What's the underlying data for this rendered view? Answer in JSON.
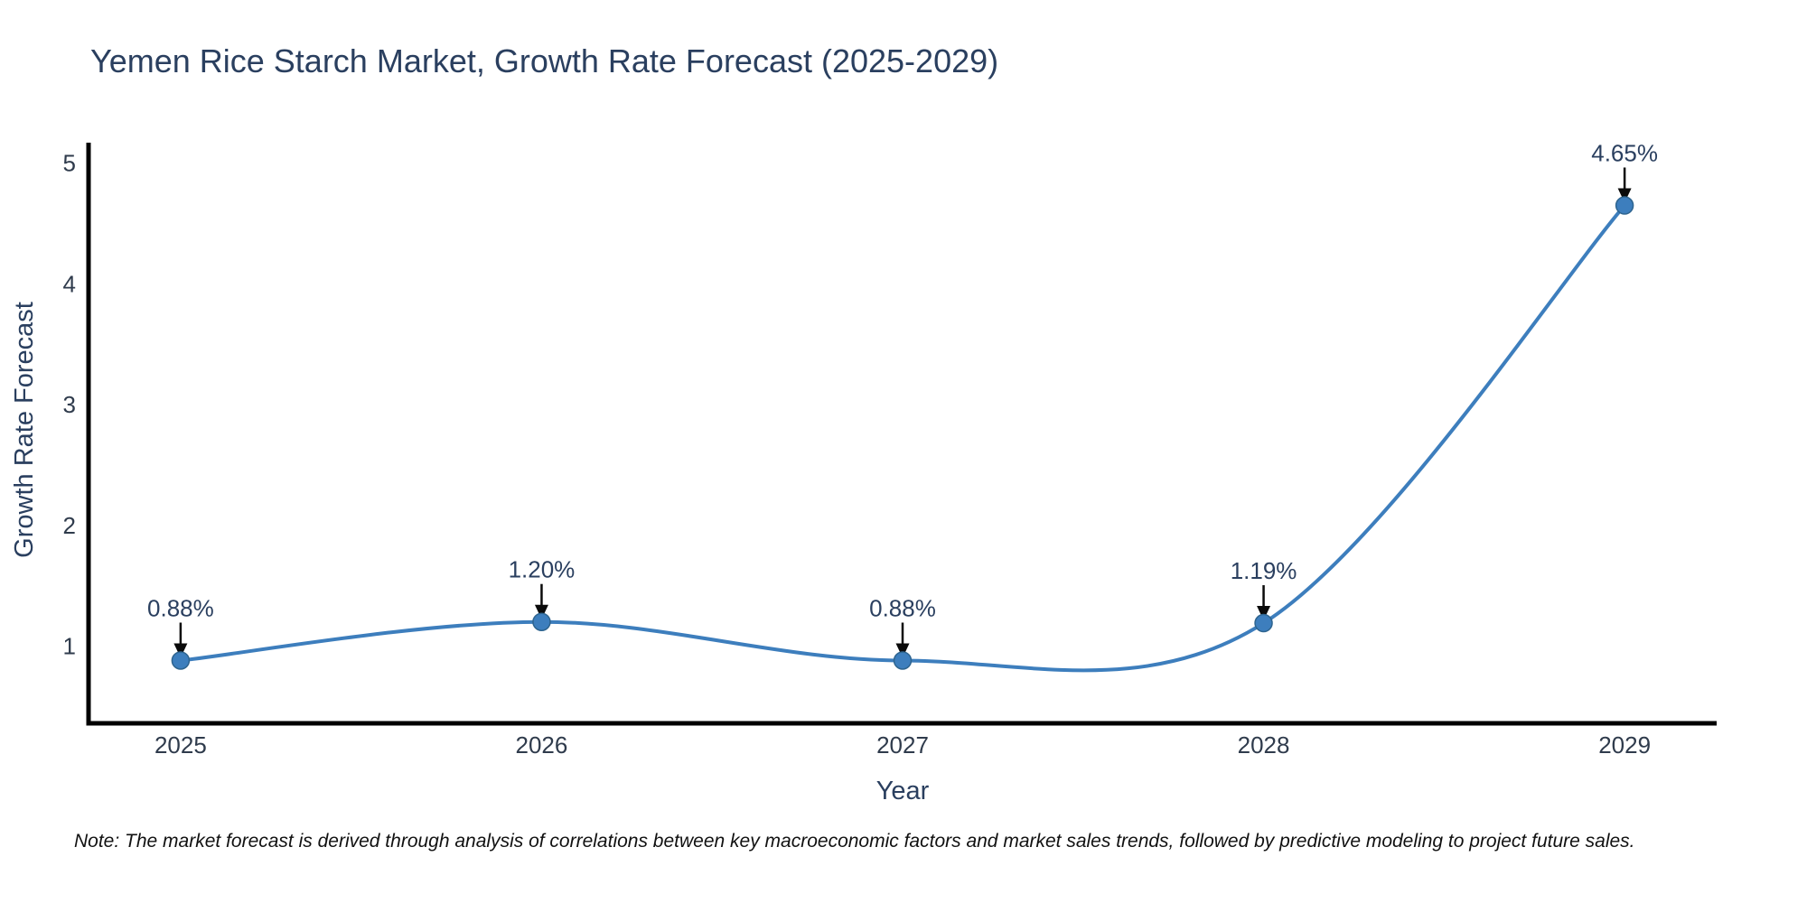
{
  "note": "Note: The market forecast is derived through analysis of correlations between key macroeconomic factors and market sales trends, followed by predictive modeling to project future sales.",
  "chart_data": {
    "type": "line",
    "title": "Yemen Rice Starch Market, Growth Rate Forecast (2025-2029)",
    "xlabel": "Year",
    "ylabel": "Growth Rate Forecast",
    "categories": [
      2025,
      2026,
      2027,
      2028,
      2029
    ],
    "values": [
      0.88,
      1.2,
      0.88,
      1.19,
      4.65
    ],
    "point_labels": [
      "0.88%",
      "1.20%",
      "0.88%",
      "1.19%",
      "4.65%"
    ],
    "y_ticks": [
      1,
      2,
      3,
      4,
      5
    ],
    "xlim": [
      2024.745,
      2029.255
    ],
    "ylim": [
      0.36,
      5.17
    ],
    "grid": false,
    "legend": "none",
    "line_style": "spline",
    "colors": {
      "line": "#3d7ebd",
      "marker": "#3d7ebd",
      "marker_edge": "#2e648f",
      "arrow": "#0a0a0a",
      "axis": "#000000",
      "text": "#2a3f5f"
    }
  }
}
